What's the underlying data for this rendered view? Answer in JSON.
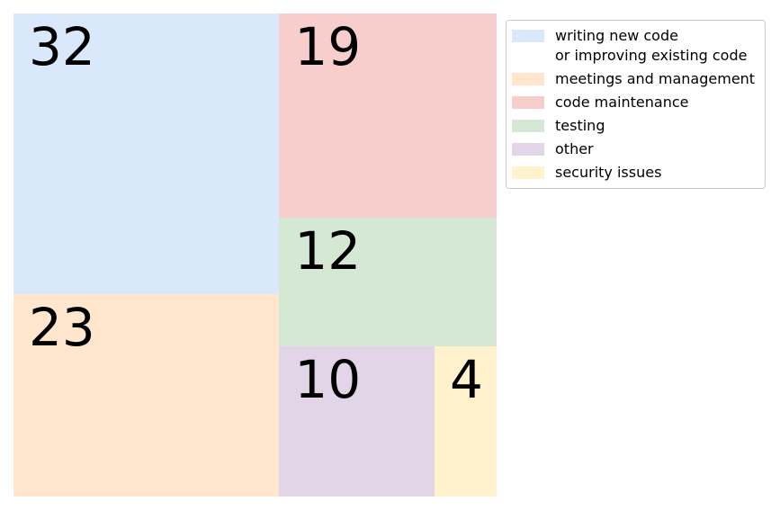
{
  "chart_data": {
    "type": "treemap",
    "title": "",
    "legend_position": "top-right",
    "items": [
      {
        "label": "writing new code\nor improving existing code",
        "value": 32,
        "color": "#dae8fc"
      },
      {
        "label": "meetings and management",
        "value": 23,
        "color": "#ffe6cc"
      },
      {
        "label": "code maintenance",
        "value": 19,
        "color": "#f8cecc"
      },
      {
        "label": "testing",
        "value": 12,
        "color": "#d5e8d4"
      },
      {
        "label": "other",
        "value": 10,
        "color": "#e1d5e7"
      },
      {
        "label": "security issues",
        "value": 4,
        "color": "#fff2cc"
      }
    ]
  }
}
